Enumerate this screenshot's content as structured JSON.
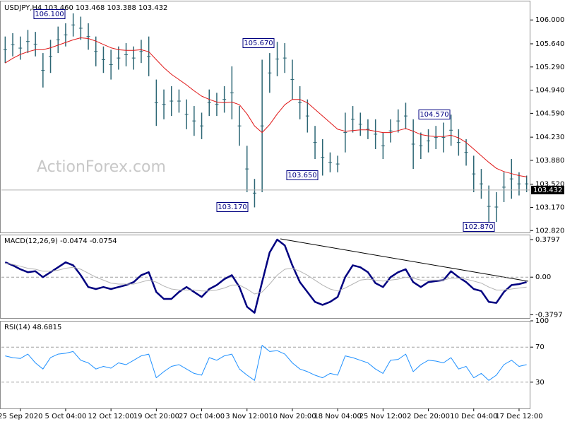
{
  "chart_data": [
    {
      "type": "ohlc",
      "title": "USDJPY,H4  103.460 103.468 103.388 103.432",
      "color": "#2c6674",
      "high": [
        105.75,
        105.8,
        105.75,
        105.85,
        105.82,
        105.5,
        105.7,
        105.9,
        105.95,
        106.1,
        106.05,
        105.95,
        105.75,
        105.6,
        105.55,
        105.6,
        105.65,
        105.6,
        105.7,
        105.75,
        105.1,
        104.95,
        105.0,
        104.95,
        104.8,
        104.7,
        104.6,
        104.95,
        104.9,
        105.0,
        105.3,
        104.7,
        104.1,
        103.6,
        105.4,
        105.5,
        105.67,
        105.65,
        105.4,
        105.0,
        104.8,
        104.4,
        104.2,
        104.0,
        103.95,
        104.6,
        104.7,
        104.6,
        104.5,
        104.5,
        104.3,
        104.5,
        104.65,
        104.75,
        104.5,
        104.3,
        104.35,
        104.4,
        104.45,
        104.57,
        104.35,
        104.2,
        103.95,
        103.75,
        103.5,
        103.4,
        103.7,
        103.9,
        103.7,
        103.65
      ],
      "low": [
        105.35,
        105.45,
        105.4,
        105.5,
        105.45,
        104.98,
        105.2,
        105.5,
        105.6,
        105.75,
        105.7,
        105.55,
        105.3,
        105.2,
        105.1,
        105.25,
        105.3,
        105.25,
        105.35,
        105.15,
        104.4,
        104.5,
        104.55,
        104.6,
        104.35,
        104.25,
        104.2,
        104.55,
        104.55,
        104.6,
        104.5,
        104.1,
        103.4,
        103.17,
        103.4,
        104.9,
        105.15,
        105.2,
        104.8,
        104.5,
        104.3,
        103.9,
        103.65,
        103.7,
        103.7,
        104.0,
        104.3,
        104.25,
        104.2,
        104.05,
        103.9,
        104.15,
        104.3,
        104.35,
        103.75,
        103.9,
        104.0,
        104.05,
        104.0,
        104.1,
        103.95,
        103.8,
        103.4,
        103.3,
        102.87,
        102.95,
        103.25,
        103.3,
        103.35,
        103.4
      ],
      "overlay": {
        "color": "#e01818",
        "values": [
          105.35,
          105.42,
          105.48,
          105.52,
          105.55,
          105.55,
          105.58,
          105.62,
          105.66,
          105.7,
          105.73,
          105.72,
          105.68,
          105.63,
          105.58,
          105.55,
          105.54,
          105.54,
          105.55,
          105.52,
          105.4,
          105.28,
          105.18,
          105.1,
          105.02,
          104.93,
          104.85,
          104.8,
          104.76,
          104.75,
          104.76,
          104.72,
          104.58,
          104.4,
          104.3,
          104.42,
          104.58,
          104.72,
          104.8,
          104.8,
          104.75,
          104.65,
          104.55,
          104.45,
          104.35,
          104.32,
          104.33,
          104.34,
          104.34,
          104.32,
          104.3,
          104.3,
          104.33,
          104.36,
          104.32,
          104.27,
          104.25,
          104.24,
          104.24,
          104.26,
          104.22,
          104.15,
          104.05,
          103.95,
          103.85,
          103.76,
          103.71,
          103.68,
          103.65,
          103.63
        ]
      },
      "ylim": [
        102.78,
        106.28
      ],
      "yticks": [
        {
          "value": 106.0,
          "label": "106.000"
        },
        {
          "value": 105.64,
          "label": "105.640"
        },
        {
          "value": 105.29,
          "label": "105.290"
        },
        {
          "value": 104.94,
          "label": "104.940"
        },
        {
          "value": 104.59,
          "label": "104.590"
        },
        {
          "value": 104.23,
          "label": "104.230"
        },
        {
          "value": 103.88,
          "label": "103.880"
        },
        {
          "value": 103.52,
          "label": "103.520"
        },
        {
          "value": 103.17,
          "label": "103.170"
        },
        {
          "value": 102.82,
          "label": "102.820"
        }
      ],
      "last_price": {
        "value": 103.432,
        "label": "103.432"
      },
      "annotations": [
        "106.100",
        "105.670",
        "103.170",
        "103.650",
        "104.570",
        "102.870"
      ],
      "watermark": "ActionForex.com"
    },
    {
      "type": "line",
      "title": "MACD(12,26,9) -0.0474 -0.0754",
      "series": [
        {
          "color": "#000080",
          "width": 2.5,
          "values": [
            0.15,
            0.12,
            0.08,
            0.05,
            0.06,
            0.0,
            0.05,
            0.1,
            0.15,
            0.12,
            0.02,
            -0.1,
            -0.12,
            -0.1,
            -0.12,
            -0.1,
            -0.08,
            -0.05,
            0.02,
            0.05,
            -0.15,
            -0.22,
            -0.22,
            -0.15,
            -0.1,
            -0.15,
            -0.2,
            -0.12,
            -0.08,
            -0.02,
            0.02,
            -0.1,
            -0.3,
            -0.36,
            -0.05,
            0.25,
            0.38,
            0.32,
            0.12,
            -0.05,
            -0.15,
            -0.25,
            -0.28,
            -0.25,
            -0.2,
            0.0,
            0.12,
            0.1,
            0.05,
            -0.06,
            -0.1,
            0.0,
            0.05,
            0.08,
            -0.05,
            -0.1,
            -0.05,
            -0.04,
            -0.03,
            0.06,
            0.0,
            -0.05,
            -0.12,
            -0.14,
            -0.25,
            -0.26,
            -0.15,
            -0.08,
            -0.07,
            -0.05
          ]
        },
        {
          "color": "#b4b4b4",
          "width": 1,
          "values": [
            0.14,
            0.13,
            0.11,
            0.09,
            0.08,
            0.06,
            0.06,
            0.07,
            0.09,
            0.1,
            0.08,
            0.04,
            0.0,
            -0.03,
            -0.06,
            -0.07,
            -0.07,
            -0.07,
            -0.05,
            -0.03,
            -0.05,
            -0.09,
            -0.12,
            -0.13,
            -0.13,
            -0.13,
            -0.14,
            -0.14,
            -0.13,
            -0.11,
            -0.08,
            -0.08,
            -0.12,
            -0.17,
            -0.15,
            -0.07,
            0.02,
            0.08,
            0.09,
            0.06,
            0.02,
            -0.03,
            -0.08,
            -0.12,
            -0.14,
            -0.11,
            -0.07,
            -0.03,
            -0.02,
            -0.03,
            -0.04,
            -0.03,
            -0.02,
            0.0,
            -0.01,
            -0.03,
            -0.03,
            -0.03,
            -0.03,
            -0.01,
            -0.01,
            -0.02,
            -0.04,
            -0.06,
            -0.1,
            -0.13,
            -0.13,
            -0.12,
            -0.11,
            -0.1
          ]
        }
      ],
      "ylim": [
        -0.42,
        0.43
      ],
      "yticks": [
        0.3797,
        {
          "value": 0,
          "label": "0.00"
        },
        -0.3797
      ]
    },
    {
      "type": "line",
      "title": "RSI(14) 48.6815",
      "grid": true,
      "categories": [
        null,
        null,
        "25 Sep 2020",
        null,
        null,
        null,
        null,
        null,
        "5 Oct 04:00",
        null,
        null,
        null,
        null,
        null,
        "12 Oct 12:00",
        null,
        null,
        null,
        null,
        null,
        "19 Oct 20:00",
        null,
        null,
        null,
        null,
        null,
        "27 Oct 04:00",
        null,
        null,
        null,
        null,
        null,
        "3 Nov 12:00",
        null,
        null,
        null,
        null,
        null,
        "10 Nov 20:00",
        null,
        null,
        null,
        null,
        null,
        "18 Nov 04:00",
        null,
        null,
        null,
        null,
        null,
        "25 Nov 12:00",
        null,
        null,
        null,
        null,
        null,
        "2 Dec 20:00",
        null,
        null,
        null,
        null,
        null,
        "10 Dec 04:00",
        null,
        null,
        null,
        null,
        null,
        "17 Dec 12:00",
        null
      ],
      "series": [
        {
          "color": "#1e90ff",
          "width": 1,
          "values": [
            60,
            58,
            57,
            62,
            52,
            45,
            58,
            62,
            63,
            65,
            55,
            52,
            45,
            48,
            46,
            52,
            50,
            55,
            60,
            62,
            35,
            42,
            48,
            50,
            45,
            40,
            38,
            58,
            55,
            60,
            62,
            45,
            38,
            32,
            72,
            65,
            66,
            62,
            52,
            45,
            42,
            38,
            35,
            40,
            38,
            60,
            58,
            55,
            52,
            45,
            40,
            55,
            56,
            62,
            42,
            50,
            55,
            54,
            52,
            58,
            45,
            48,
            35,
            40,
            32,
            38,
            50,
            55,
            48,
            50
          ]
        }
      ],
      "ylim": [
        0,
        100
      ],
      "yticks": [
        100,
        70,
        30
      ]
    }
  ]
}
